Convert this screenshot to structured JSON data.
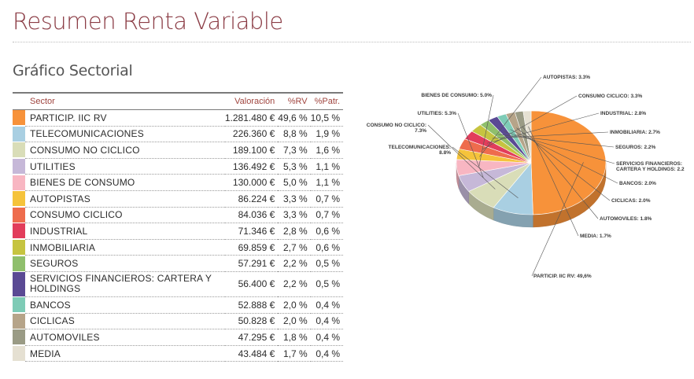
{
  "header": {
    "title": "Resumen Renta Variable",
    "subtitle": "Gráfico Sectorial"
  },
  "table": {
    "headers": {
      "sector": "Sector",
      "valoracion": "Valoración",
      "rv": "%RV",
      "patr": "%Patr."
    }
  },
  "chart_data": {
    "type": "pie",
    "title": "",
    "slices": [
      {
        "name": "PARTICIP. IIC RV",
        "chart_label": "PARTICIP. IIC RV: 49,6%",
        "valoracion": "1.281.480 €",
        "rv_text": "49,6 %",
        "patr_text": "10,5 %",
        "value": 49.6,
        "color": "#f7923a"
      },
      {
        "name": "TELECOMUNICACIONES",
        "chart_label": "TELECOMUNICACIONES: 8.8%",
        "valoracion": "226.360 €",
        "rv_text": "8,8 %",
        "patr_text": "1,9 %",
        "value": 8.8,
        "color": "#a9cfe2"
      },
      {
        "name": "CONSUMO NO CICLICO",
        "chart_label": "CONSUMO NO CICLICO: 7.3%",
        "valoracion": "189.100 €",
        "rv_text": "7,3 %",
        "patr_text": "1,6 %",
        "value": 7.3,
        "color": "#d9ddb8"
      },
      {
        "name": "UTILITIES",
        "chart_label": "UTILITIES: 5.3%",
        "valoracion": "136.492 €",
        "rv_text": "5,3 %",
        "patr_text": "1,1 %",
        "value": 5.3,
        "color": "#c6b8d8"
      },
      {
        "name": "BIENES DE CONSUMO",
        "chart_label": "BIENES DE CONSUMO: 5.0%",
        "valoracion": "130.000 €",
        "rv_text": "5,0 %",
        "patr_text": "1,1 %",
        "value": 5.0,
        "color": "#f8b6c2"
      },
      {
        "name": "AUTOPISTAS",
        "chart_label": "AUTOPISTAS: 3.3%",
        "valoracion": "86.224 €",
        "rv_text": "3,3 %",
        "patr_text": "0,7 %",
        "value": 3.3,
        "color": "#f5c33b"
      },
      {
        "name": "CONSUMO CICLICO",
        "chart_label": "CONSUMO CICLICO: 3.3%",
        "valoracion": "84.036 €",
        "rv_text": "3,3 %",
        "patr_text": "0,7 %",
        "value": 3.3,
        "color": "#ee6c4d"
      },
      {
        "name": "INDUSTRIAL",
        "chart_label": "INDUSTRIAL: 2.8%",
        "valoracion": "71.346 €",
        "rv_text": "2,8 %",
        "patr_text": "0,6 %",
        "value": 2.8,
        "color": "#e23d5b"
      },
      {
        "name": "INMOBILIARIA",
        "chart_label": "INMOBILIARIA: 2.7%",
        "valoracion": "69.859 €",
        "rv_text": "2,7 %",
        "patr_text": "0,6 %",
        "value": 2.7,
        "color": "#c6c440"
      },
      {
        "name": "SEGUROS",
        "chart_label": "SEGUROS: 2.2%",
        "valoracion": "57.291 €",
        "rv_text": "2,2 %",
        "patr_text": "0,5 %",
        "value": 2.2,
        "color": "#8fbf6c"
      },
      {
        "name": "SERVICIOS FINANCIEROS: CARTERA Y HOLDINGS",
        "chart_label": "SERVICIOS FINANCIEROS: CARTERA Y HOLDINGS: 2.2",
        "valoracion": "56.400 €",
        "rv_text": "2,2 %",
        "patr_text": "0,5 %",
        "value": 2.2,
        "color": "#5a4a94"
      },
      {
        "name": "BANCOS",
        "chart_label": "BANCOS: 2.0%",
        "valoracion": "52.888 €",
        "rv_text": "2,0 %",
        "patr_text": "0,4 %",
        "value": 2.0,
        "color": "#7ecbb6"
      },
      {
        "name": "CICLICAS",
        "chart_label": "CICLICAS: 2.0%",
        "valoracion": "50.828 €",
        "rv_text": "2,0 %",
        "patr_text": "0,4 %",
        "value": 2.0,
        "color": "#b6a489"
      },
      {
        "name": "AUTOMOVILES",
        "chart_label": "AUTOMOVILES: 1.8%",
        "valoracion": "47.295 €",
        "rv_text": "1,8 %",
        "patr_text": "0,4 %",
        "value": 1.8,
        "color": "#9a9b85"
      },
      {
        "name": "MEDIA",
        "chart_label": "MEDIA: 1.7%",
        "valoracion": "43.484 €",
        "rv_text": "1,7 %",
        "patr_text": "0,4 %",
        "value": 1.7,
        "color": "#e5e0d2"
      }
    ]
  }
}
